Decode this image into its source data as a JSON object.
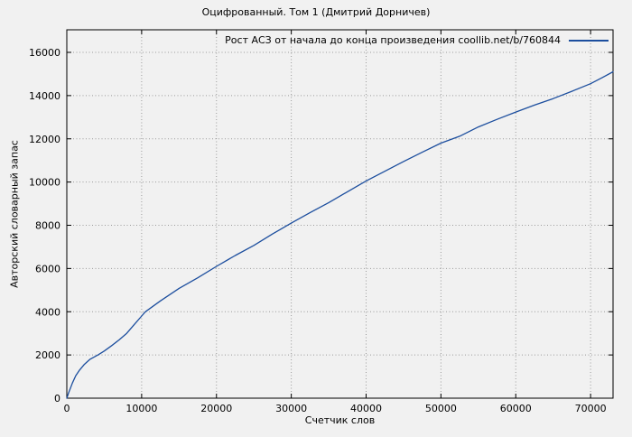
{
  "window": {
    "background_color": "#f1f1f1"
  },
  "chart_data": {
    "type": "line",
    "title": "Оцифрованный. Том 1 (Дмитрий Дорничев)",
    "xlabel": "Счетчик слов",
    "ylabel": "Авторский словарный запас",
    "xlim": [
      0,
      73000
    ],
    "ylim": [
      0,
      17000
    ],
    "xticks": [
      0,
      10000,
      20000,
      30000,
      40000,
      50000,
      60000,
      70000
    ],
    "yticks": [
      0,
      2000,
      4000,
      6000,
      8000,
      10000,
      12000,
      14000,
      16000
    ],
    "grid": true,
    "grid_style": "dotted",
    "grid_color": "#9a9a9a",
    "axis_color": "#000000",
    "legend_position": "top-right-inside",
    "series": [
      {
        "name": "Рост АСЗ от начала до конца произведения coollib.net/b/760844",
        "color": "#1c4e9e",
        "points": [
          [
            0,
            0
          ],
          [
            250,
            260
          ],
          [
            500,
            470
          ],
          [
            750,
            700
          ],
          [
            1200,
            1040
          ],
          [
            1700,
            1300
          ],
          [
            2300,
            1550
          ],
          [
            3100,
            1800
          ],
          [
            4200,
            2010
          ],
          [
            5000,
            2180
          ],
          [
            6000,
            2430
          ],
          [
            7000,
            2700
          ],
          [
            8000,
            3000
          ],
          [
            9000,
            3400
          ],
          [
            10000,
            3800
          ],
          [
            10500,
            4000
          ],
          [
            11500,
            4250
          ],
          [
            12500,
            4500
          ],
          [
            15000,
            5080
          ],
          [
            17500,
            5570
          ],
          [
            20000,
            6100
          ],
          [
            22500,
            6600
          ],
          [
            25000,
            7070
          ],
          [
            27500,
            7600
          ],
          [
            30000,
            8100
          ],
          [
            32500,
            8580
          ],
          [
            35000,
            9050
          ],
          [
            37500,
            9550
          ],
          [
            40000,
            10050
          ],
          [
            42500,
            10500
          ],
          [
            45000,
            10950
          ],
          [
            47500,
            11380
          ],
          [
            50000,
            11800
          ],
          [
            52500,
            12120
          ],
          [
            55000,
            12550
          ],
          [
            57500,
            12900
          ],
          [
            60000,
            13240
          ],
          [
            62500,
            13560
          ],
          [
            65000,
            13860
          ],
          [
            67500,
            14200
          ],
          [
            70000,
            14550
          ],
          [
            71500,
            14820
          ],
          [
            73000,
            15100
          ]
        ]
      }
    ]
  }
}
